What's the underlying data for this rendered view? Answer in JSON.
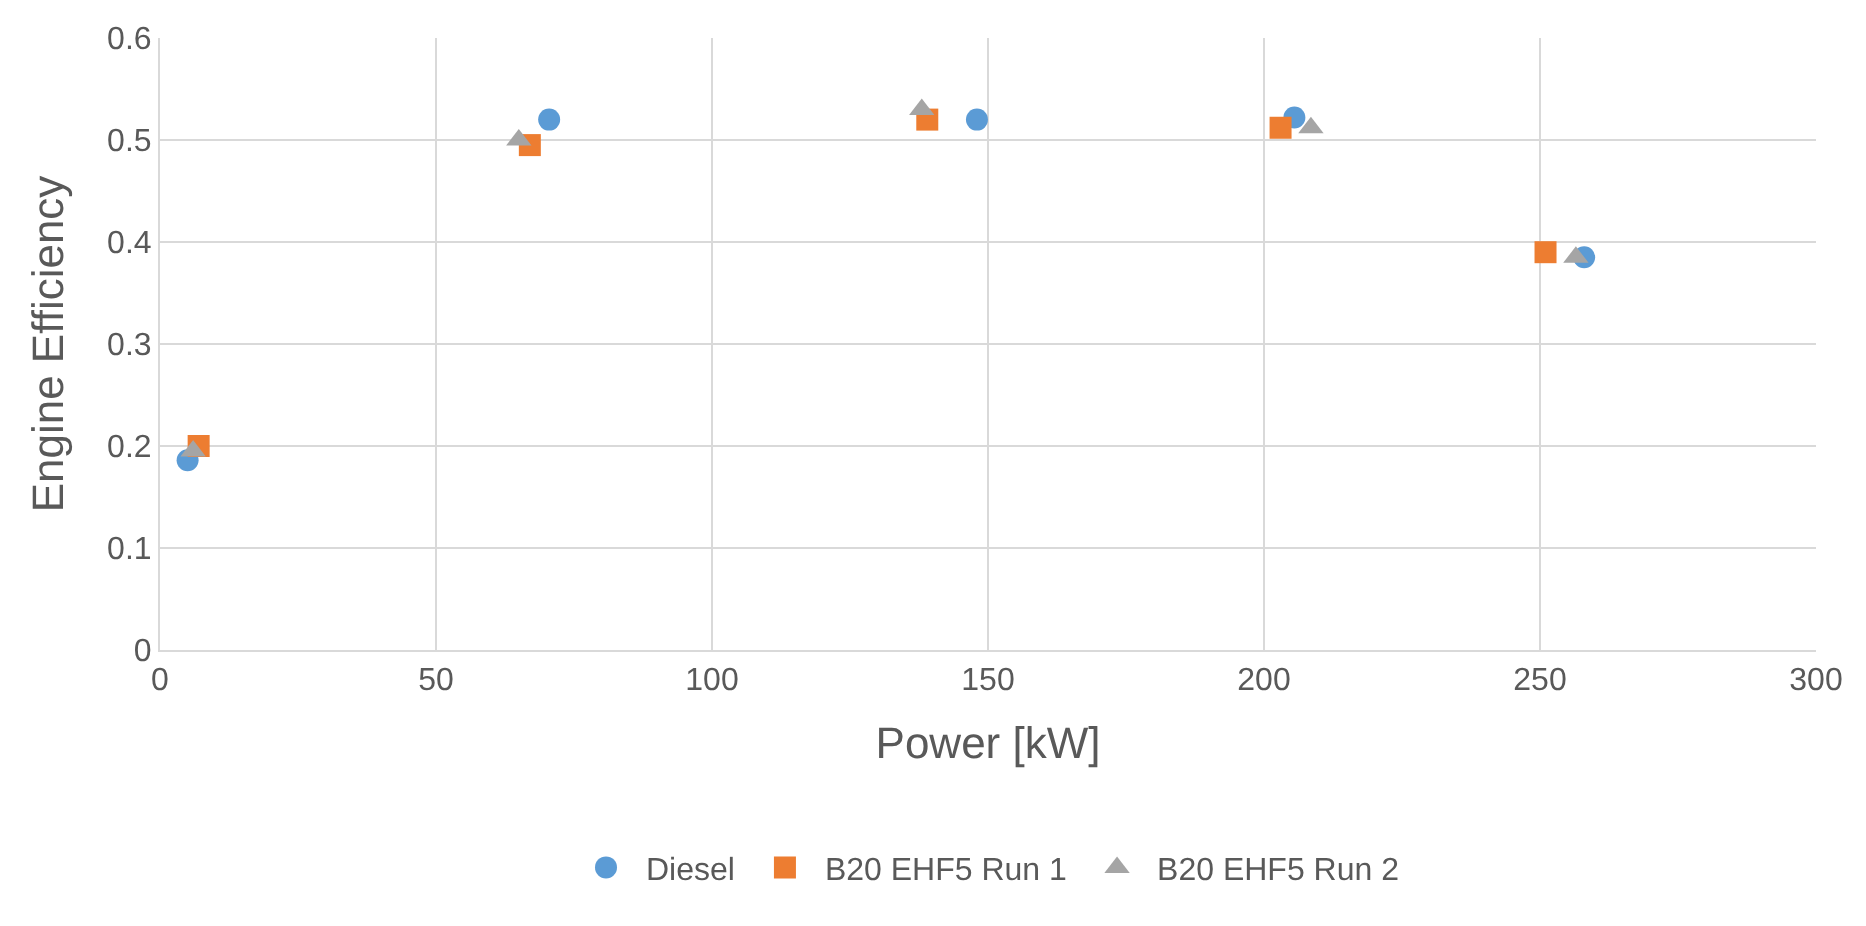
{
  "chart_data": {
    "type": "scatter",
    "xlabel": "Power [kW]",
    "ylabel": "Engine Efficiency",
    "xlim": [
      0,
      300
    ],
    "xticks": [
      0,
      50,
      100,
      150,
      200,
      250,
      300
    ],
    "ylim": [
      0,
      0.6
    ],
    "yticks": [
      0,
      0.1,
      0.2,
      0.3,
      0.4,
      0.5,
      0.6
    ],
    "grid": true,
    "legend": "bottom",
    "series": [
      {
        "name": "Diesel",
        "color": "#5b9bd5",
        "marker": "circle",
        "x": [
          5,
          70.5,
          148,
          205.5,
          258
        ],
        "values": [
          0.186,
          0.52,
          0.52,
          0.522,
          0.385
        ]
      },
      {
        "name": "B20 EHF5 Run 1",
        "color": "#ed7d31",
        "marker": "square",
        "x": [
          7,
          67,
          139,
          203,
          251
        ],
        "values": [
          0.2,
          0.495,
          0.52,
          0.512,
          0.39
        ]
      },
      {
        "name": "B20 EHF5 Run 2",
        "color": "#a5a5a5",
        "marker": "triangle",
        "x": [
          6,
          65,
          138,
          208.5,
          256.5
        ],
        "values": [
          0.195,
          0.5,
          0.53,
          0.512,
          0.385
        ]
      }
    ]
  }
}
